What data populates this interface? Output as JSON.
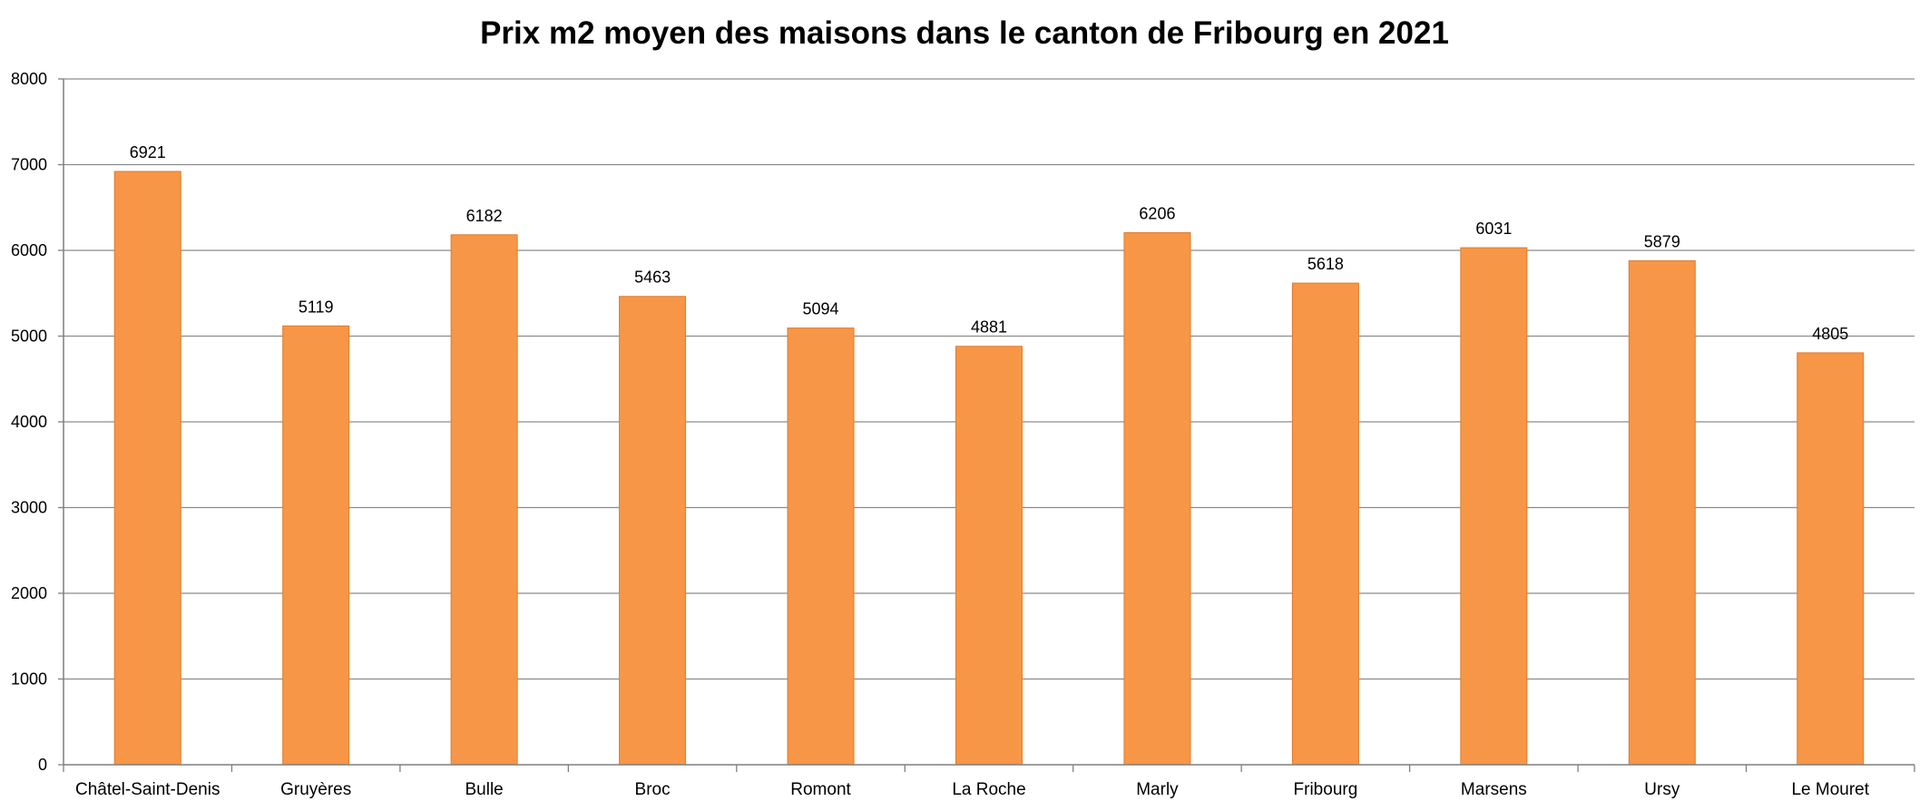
{
  "chart_data": {
    "type": "bar",
    "title": "Prix m2 moyen des maisons dans le canton de Fribourg en 2021",
    "xlabel": "",
    "ylabel": "",
    "categories": [
      "Châtel-Saint-Denis",
      "Gruyères",
      "Bulle",
      "Broc",
      "Romont",
      "La Roche",
      "Marly",
      "Fribourg",
      "Marsens",
      "Ursy",
      "Le Mouret"
    ],
    "values": [
      6921,
      5119,
      6182,
      5463,
      5094,
      4881,
      6206,
      5618,
      6031,
      5879,
      4805
    ],
    "data_labels": [
      "6921",
      "5119",
      "6182",
      "5463",
      "5094",
      "4881",
      "6206",
      "5618",
      "6031",
      "5879",
      "4805"
    ],
    "ylim": [
      0,
      8000
    ],
    "y_ticks": [
      "0",
      "1000",
      "2000",
      "3000",
      "4000",
      "5000",
      "6000",
      "7000",
      "8000"
    ],
    "grid": true,
    "legend": "none",
    "colors": {
      "bar_fill": "#F79646",
      "bar_stroke": "#E07B2C",
      "grid": "#8C8C8C",
      "axis": "#7F7F7F"
    }
  }
}
